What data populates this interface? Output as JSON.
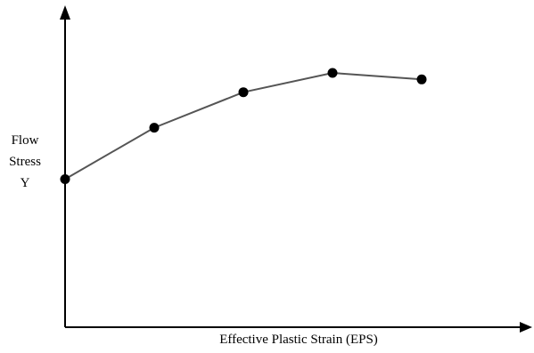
{
  "chart_data": {
    "type": "line",
    "title": "",
    "xlabel": "Effective Plastic Strain (EPS)",
    "ylabel_lines": [
      "Flow",
      "Stress",
      "Y"
    ],
    "x": [
      0,
      1,
      2,
      3,
      4
    ],
    "y": [
      0.46,
      0.62,
      0.73,
      0.79,
      0.77
    ],
    "xlim": [
      0,
      5.2
    ],
    "ylim": [
      0,
      1
    ],
    "ticks": false,
    "grid": false,
    "legend": null,
    "line_color": "#555555",
    "marker_color": "#000000",
    "axis_color": "#000000"
  }
}
